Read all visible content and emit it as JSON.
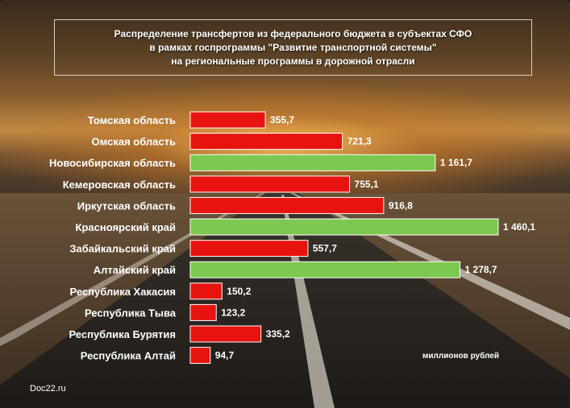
{
  "title": {
    "line1": "Распределение трансфертов  из федерального бюджета в субъектах СФО",
    "line2": "в рамках госпрограммы \"Развитие транспортной системы\"",
    "line3": "на региональные программы в дорожной отрасли"
  },
  "units_label": "миллионов рублей",
  "source_label": "Doc22.ru",
  "colors": {
    "red_bar": "#e8130f",
    "green_bar": "#7dc850"
  },
  "chart_data": {
    "type": "bar",
    "orientation": "horizontal",
    "categories": [
      "Томская область",
      "Омская область",
      "Новосибирская область",
      "Кемеровская область",
      "Иркутская область",
      "Красноярский край",
      "Забайкальский край",
      "Алтайский край",
      "Республика Хакасия",
      "Республика Тыва",
      "Республика Бурятия",
      "Республика Алтай"
    ],
    "values": [
      355.7,
      721.3,
      1161.7,
      755.1,
      916.8,
      1460.1,
      557.7,
      1278.7,
      150.2,
      123.2,
      335.2,
      94.7
    ],
    "value_labels": [
      "355,7",
      "721,3",
      "1 161,7",
      "755,1",
      "916,8",
      "1 460,1",
      "557,7",
      "1 278,7",
      "150,2",
      "123,2",
      "335,2",
      "94,7"
    ],
    "highlight": [
      false,
      false,
      true,
      false,
      false,
      true,
      false,
      true,
      false,
      false,
      false,
      false
    ],
    "xlabel": "миллионов рублей",
    "xlim": [
      0,
      1500
    ],
    "grid": false
  }
}
